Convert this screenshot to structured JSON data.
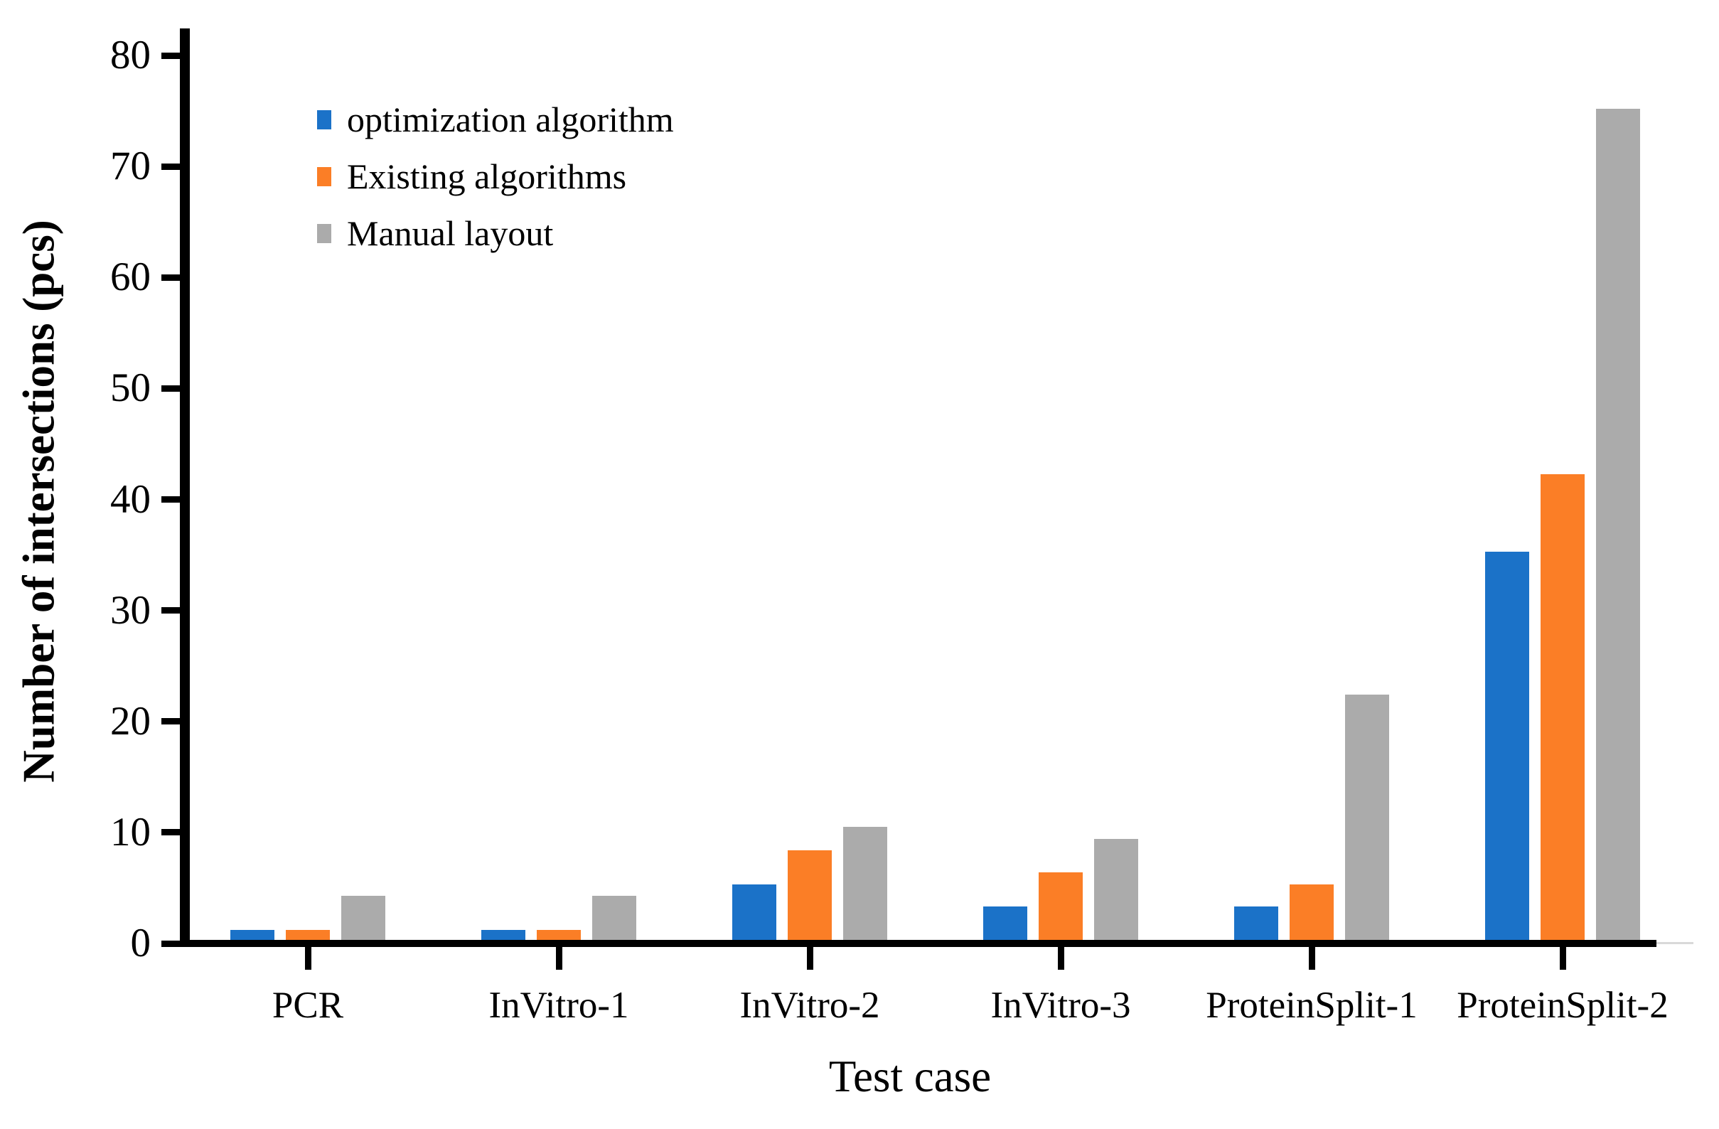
{
  "chart_data": {
    "type": "bar",
    "title": "",
    "xlabel": "Test case",
    "ylabel": "Number of intersections (pcs)",
    "categories": [
      "PCR",
      "InVitro-1",
      "InVitro-2",
      "InVitro-3",
      "ProteinSplit-1",
      "ProteinSplit-2"
    ],
    "series": [
      {
        "name": "optimization algorithm",
        "color": "#1B72C8",
        "values": [
          1.2,
          1.2,
          5.3,
          3.3,
          3.3,
          35.3
        ]
      },
      {
        "name": "Existing algorithms",
        "color": "#FB7E26",
        "values": [
          1.2,
          1.2,
          8.4,
          6.4,
          5.3,
          42.3
        ]
      },
      {
        "name": "Manual layout",
        "color": "#ABABAB",
        "values": [
          4.3,
          4.3,
          10.5,
          9.4,
          22.4,
          75.2
        ]
      }
    ],
    "ylim": [
      0,
      80
    ],
    "yticks": [
      0,
      10,
      20,
      30,
      40,
      50,
      60,
      70,
      80
    ],
    "grid": false,
    "legend_position": "upper-left-inside",
    "axis_color": "#000000",
    "background_color": "#ffffff"
  }
}
